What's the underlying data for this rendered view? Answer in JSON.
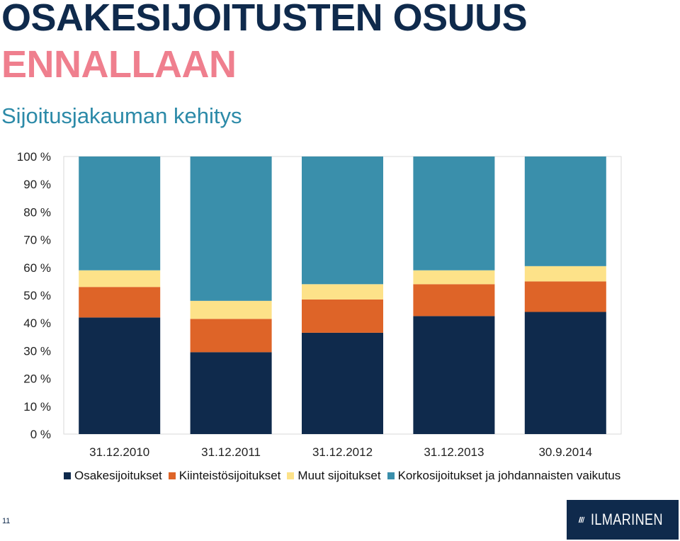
{
  "slide": {
    "title_line1": "OSAKESIJOITUSTEN OSUUS",
    "title_line2": "ENNALLAAN",
    "subtitle": "Sijoitusjakauman kehitys",
    "page_number": "11",
    "logo_text": "ILMARINEN"
  },
  "colors": {
    "osakesijoitukset": "#0f2a4c",
    "kiinteistosijoitukset": "#de6428",
    "muut": "#fde289",
    "korko": "#3a8fab",
    "title_dark": "#0f2a4c",
    "title_pink": "#ef7f8e",
    "subtitle": "#2c8aa8"
  },
  "chart_data": {
    "type": "bar",
    "stacked": true,
    "percent": true,
    "categories": [
      "31.12.2010",
      "31.12.2011",
      "31.12.2012",
      "31.12.2013",
      "30.9.2014"
    ],
    "series": [
      {
        "name": "Osakesijoitukset",
        "values": [
          42.0,
          29.5,
          36.5,
          42.5,
          44.0
        ]
      },
      {
        "name": "Kiinteistösijoitukset",
        "values": [
          11.0,
          12.0,
          12.0,
          11.5,
          11.0
        ]
      },
      {
        "name": "Muut sijoitukset",
        "values": [
          6.0,
          6.5,
          5.5,
          5.0,
          5.5
        ]
      },
      {
        "name": "Korkosijoitukset ja johdannaisten vaikutus",
        "values": [
          41.0,
          52.0,
          46.0,
          41.0,
          39.5
        ]
      }
    ],
    "ylim": [
      0,
      100
    ],
    "yticks": [
      "0 %",
      "10 %",
      "20 %",
      "30 %",
      "40 %",
      "50 %",
      "60 %",
      "70 %",
      "80 %",
      "90 %",
      "100 %"
    ],
    "grid": false,
    "legend_position": "bottom"
  }
}
